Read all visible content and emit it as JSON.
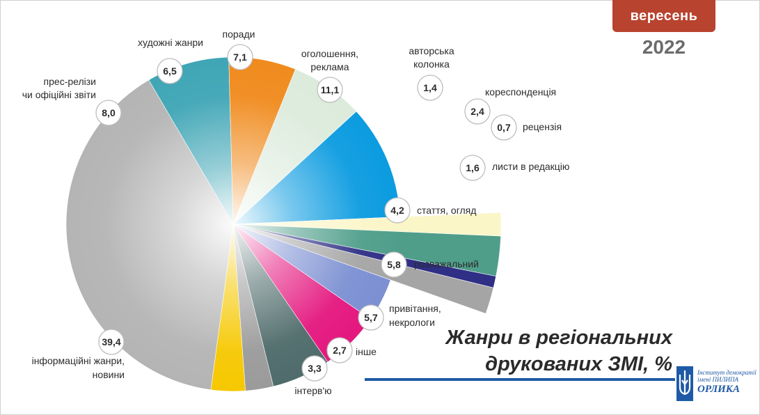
{
  "header": {
    "month": "вересень",
    "year": "2022"
  },
  "title_lines": [
    "Жанри в регіональних",
    "друкованих ЗМІ, %"
  ],
  "logo": {
    "line1": "Інститут демократії",
    "line2": "імені ПИЛИПА",
    "line3": "ОРЛИКА"
  },
  "colors": {
    "badge": "#b8432f",
    "rule": "#1f5aa6"
  },
  "chart_data": {
    "type": "pie",
    "title": "Жанри в регіональних друкованих ЗМІ, %",
    "unit": "%",
    "slices": [
      {
        "label": "оголошення, реклама",
        "value": 11.1,
        "value_label": "11,1",
        "color": "#0a9be0",
        "exploded": false
      },
      {
        "label": "авторська колонка",
        "value": 1.4,
        "value_label": "1,4",
        "color": "#fbf6c8",
        "exploded": true
      },
      {
        "label": "кореспонденція",
        "value": 2.4,
        "value_label": "2,4",
        "color": "#4f9e8a",
        "exploded": true
      },
      {
        "label": "рецензія",
        "value": 0.7,
        "value_label": "0,7",
        "color": "#2f2f86",
        "exploded": true
      },
      {
        "label": "листи в редакцію",
        "value": 1.6,
        "value_label": "1,6",
        "color": "#a5a5a5",
        "exploded": true
      },
      {
        "label": "стаття, огляд",
        "value": 4.2,
        "value_label": "4,2",
        "color": "#7b8fd2",
        "exploded": false
      },
      {
        "label": "розважальний",
        "value": 5.8,
        "value_label": "5,8",
        "color": "#e4167e",
        "exploded": false
      },
      {
        "label": "привітання, некрологи",
        "value": 5.7,
        "value_label": "5,7",
        "color": "#4e6a6a",
        "exploded": false
      },
      {
        "label": "інше",
        "value": 2.7,
        "value_label": "2,7",
        "color": "#9a9a9a",
        "exploded": false
      },
      {
        "label": "інтерв'ю",
        "value": 3.3,
        "value_label": "3,3",
        "color": "#f6c800",
        "exploded": false
      },
      {
        "label": "інформаційні жанри, новини",
        "value": 39.4,
        "value_label": "39,4",
        "color": "#b4b4b4",
        "exploded": false
      },
      {
        "label": "прес-релізи чи офіційні звіти",
        "value": 8.0,
        "value_label": "8,0",
        "color": "#3ea5b5",
        "exploded": false
      },
      {
        "label": "художні жанри",
        "value": 6.5,
        "value_label": "6,5",
        "color": "#f08a1c",
        "exploded": false
      },
      {
        "label": "поради",
        "value": 7.1,
        "value_label": "7,1",
        "color": "#dcebdc",
        "exploded": false
      }
    ]
  }
}
